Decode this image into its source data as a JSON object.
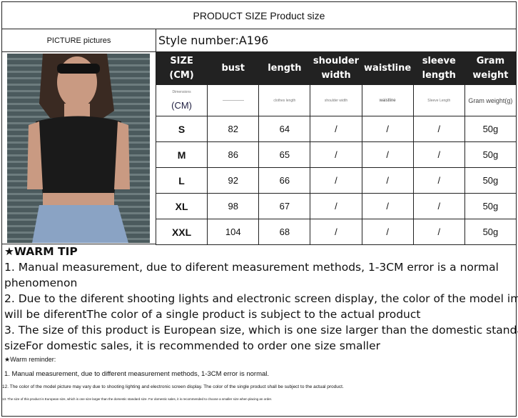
{
  "title": "PRODUCT SIZE Product size",
  "picture_label": "PICTURE pictures",
  "style_number": "Style number:A196",
  "headers": [
    [
      "SIZE",
      "(CM)"
    ],
    [
      "bust"
    ],
    [
      "length"
    ],
    [
      "shoulder",
      "width"
    ],
    [
      "waistline"
    ],
    [
      "sleeve",
      "length"
    ],
    [
      "Gram",
      "weight"
    ]
  ],
  "dims": {
    "dimensions": "Dimensions",
    "cm": "(CM)",
    "bust": "",
    "length": "clothes length",
    "shoulder": "shoulder width",
    "waist": "waistline",
    "sleeve": "Sleeve Length",
    "gram": "Gram weight(g)"
  },
  "rows": [
    {
      "size": "S",
      "bust": "82",
      "length": "64",
      "shoulder": "/",
      "waist": "/",
      "sleeve": "/",
      "gram": "50g"
    },
    {
      "size": "M",
      "bust": "86",
      "length": "65",
      "shoulder": "/",
      "waist": "/",
      "sleeve": "/",
      "gram": "50g"
    },
    {
      "size": "L",
      "bust": "92",
      "length": "66",
      "shoulder": "/",
      "waist": "/",
      "sleeve": "/",
      "gram": "50g"
    },
    {
      "size": "XL",
      "bust": "98",
      "length": "67",
      "shoulder": "/",
      "waist": "/",
      "sleeve": "/",
      "gram": "50g"
    },
    {
      "size": "XXL",
      "bust": "104",
      "length": "68",
      "shoulder": "/",
      "waist": "/",
      "sleeve": "/",
      "gram": "50g"
    }
  ],
  "tips": {
    "heading": "★WARM TIP",
    "lines": [
      "1. Manual measurement, due to diferent measurement methods, 1-3CM error is a normal",
      "phenomenon",
      "2. Due to the diferent shooting lights and electronic screen display, the color of the model image",
      "will be diferentThe color of a single product is subject to the actual product",
      "3. The size of this product is European size, which is one size larger than the domestic standard",
      "sizeFor domestic sales, it is recommended to order one size smaller"
    ]
  },
  "reminder": {
    "heading": "★Warm reminder:",
    "line1": "1. Manual measurement, due to different measurement methods, 1-3CM error is normal.",
    "line2": "12. The color of the model picture may vary due to shooting lighting and electronic screen display. The color of the single product shall be subject to the actual product.",
    "line3": "13. The size of this product is European size, which is one size larger than the domestic standard size. For domestic sales, it is recommended to choose a smaller size when placing an order."
  }
}
